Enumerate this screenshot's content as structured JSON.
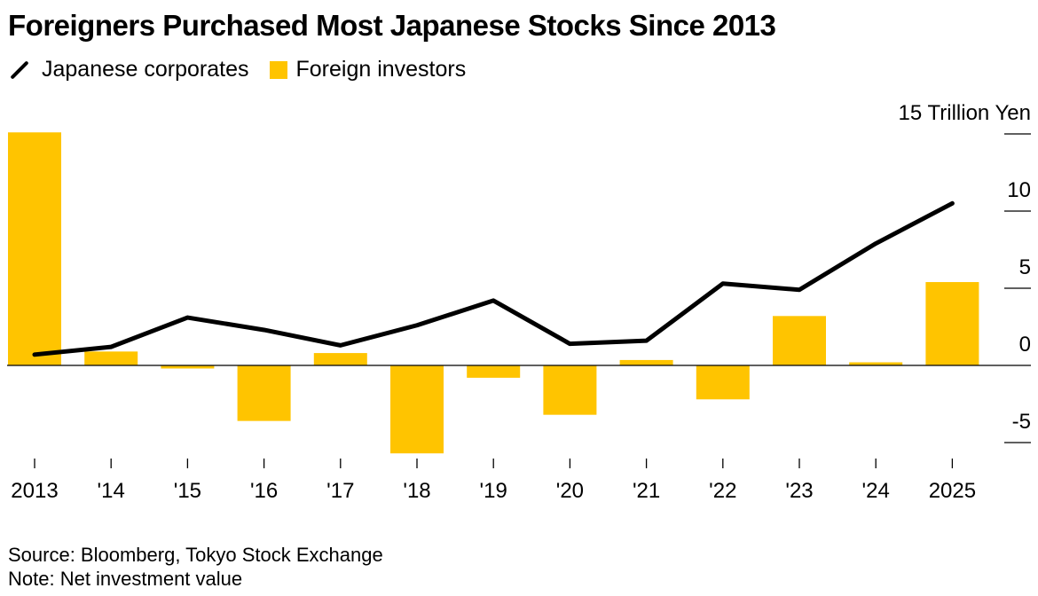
{
  "chart_data": {
    "type": "bar",
    "title": "Foreigners Purchased Most Japanese Stocks Since 2013",
    "categories": [
      "2013",
      "'14",
      "'15",
      "'16",
      "'17",
      "'18",
      "'19",
      "'20",
      "'21",
      "'22",
      "'23",
      "'24",
      "2025"
    ],
    "series": [
      {
        "name": "Foreign investors",
        "type": "bar",
        "color": "#ffc400",
        "values": [
          15.1,
          0.9,
          -0.2,
          -3.6,
          0.8,
          -5.7,
          -0.8,
          -3.2,
          0.35,
          -2.2,
          3.2,
          0.2,
          5.4
        ]
      },
      {
        "name": "Japanese corporates",
        "type": "line",
        "color": "#000000",
        "values": [
          0.7,
          1.2,
          3.1,
          2.3,
          1.3,
          2.6,
          4.2,
          1.4,
          1.6,
          5.3,
          4.9,
          7.9,
          10.5
        ]
      }
    ],
    "ylabel": "15 Trillion Yen",
    "ylim": [
      -5.5,
      15.5
    ],
    "yticks": [
      15,
      10,
      5,
      0,
      -5
    ],
    "ytick_labels": [
      "15 Trillion Yen",
      "10",
      "5",
      "0",
      "-5"
    ],
    "legend_position": "top-left",
    "grid": false
  },
  "header": {
    "title": "Foreigners Purchased Most Japanese Stocks Since 2013"
  },
  "legend": {
    "line_label": "Japanese corporates",
    "bar_label": "Foreign investors"
  },
  "footer": {
    "source": "Source: Bloomberg, Tokyo Stock Exchange",
    "note": "Note: Net investment value"
  }
}
